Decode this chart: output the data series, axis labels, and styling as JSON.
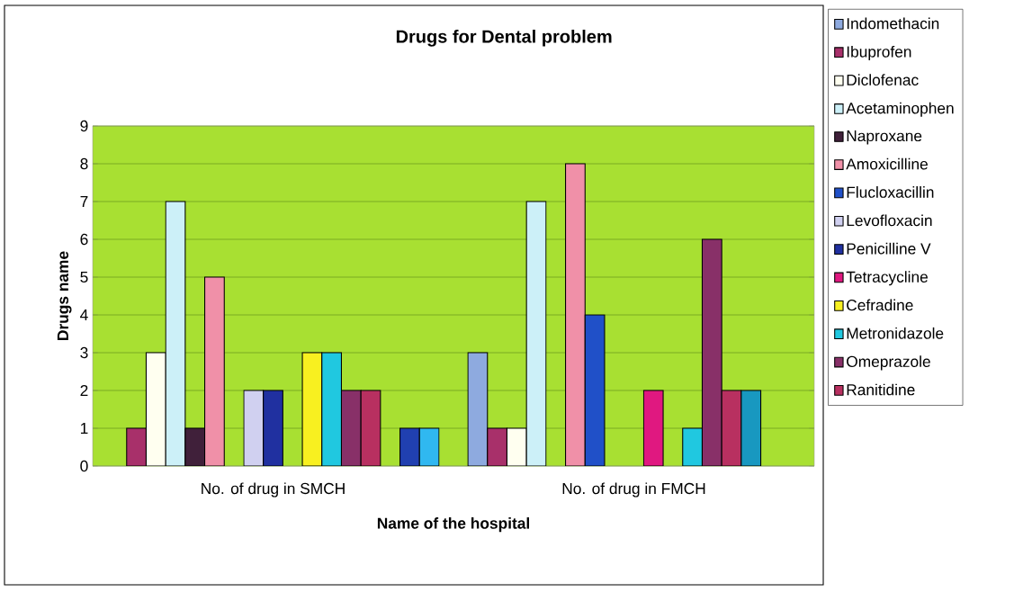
{
  "chart_data": {
    "type": "bar",
    "title": "Drugs for Dental problem",
    "xlabel": "Name of the hospital",
    "ylabel": "Drugs name",
    "categories": [
      "No. of drug in SMCH",
      "No. of drug in FMCH"
    ],
    "series": [
      {
        "name": "Indomethacin",
        "color": "#8eaadf",
        "values": [
          0,
          3
        ]
      },
      {
        "name": "Ibuprofen",
        "color": "#a8306a",
        "values": [
          1,
          1
        ]
      },
      {
        "name": "Diclofenac",
        "color": "#fffff0",
        "values": [
          3,
          1
        ]
      },
      {
        "name": "Acetaminophen",
        "color": "#ccf0f8",
        "values": [
          7,
          7
        ]
      },
      {
        "name": "Naproxane",
        "color": "#40203a",
        "values": [
          1,
          0
        ]
      },
      {
        "name": "Amoxicilline",
        "color": "#f090a8",
        "values": [
          5,
          8
        ]
      },
      {
        "name": "Flucloxacillin",
        "color": "#2050c8",
        "values": [
          0,
          4
        ]
      },
      {
        "name": "Levofloxacin",
        "color": "#d0d0f0",
        "values": [
          2,
          0
        ]
      },
      {
        "name": "Penicilline V",
        "color": "#2030a0",
        "values": [
          2,
          0
        ]
      },
      {
        "name": "Tetracycline",
        "color": "#e01880",
        "values": [
          0,
          2
        ]
      },
      {
        "name": "Cefradine",
        "color": "#f8f020",
        "values": [
          3,
          0
        ]
      },
      {
        "name": "Metronidazole",
        "color": "#20c8e0",
        "values": [
          3,
          1
        ]
      },
      {
        "name": "Omeprazole",
        "color": "#883068",
        "values": [
          2,
          6
        ]
      },
      {
        "name": "Ranitidine",
        "color": "#b83060",
        "values": [
          2,
          2
        ]
      },
      {
        "color": "#1898c0",
        "values": [
          0,
          2
        ]
      },
      {
        "color": "#2040b0",
        "values": [
          1,
          0
        ]
      },
      {
        "color": "#30b8f0",
        "values": [
          1,
          0
        ]
      }
    ],
    "ylim": [
      0,
      9
    ],
    "yticks": [
      0,
      1,
      2,
      3,
      4,
      5,
      6,
      7,
      8,
      9
    ],
    "grid": "y",
    "legend": "right"
  }
}
